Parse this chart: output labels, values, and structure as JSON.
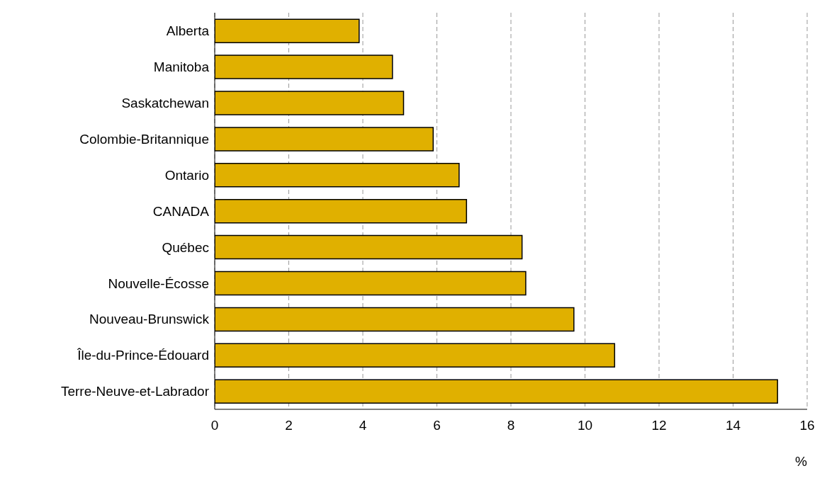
{
  "chart_data": {
    "type": "bar",
    "orientation": "horizontal",
    "categories": [
      "Alberta",
      "Manitoba",
      "Saskatchewan",
      "Colombie-Britannique",
      "Ontario",
      "CANADA",
      "Québec",
      "Nouvelle-Écosse",
      "Nouveau-Brunswick",
      "Île-du-Prince-Édouard",
      "Terre-Neuve-et-Labrador"
    ],
    "values": [
      3.9,
      4.8,
      5.1,
      5.9,
      6.6,
      6.8,
      8.3,
      8.4,
      9.7,
      10.8,
      15.2
    ],
    "color": "#e0b000",
    "xlabel": "%",
    "xlim": [
      0,
      16
    ],
    "xticks": [
      0,
      2,
      4,
      6,
      8,
      10,
      12,
      14,
      16
    ],
    "grid": "x"
  }
}
